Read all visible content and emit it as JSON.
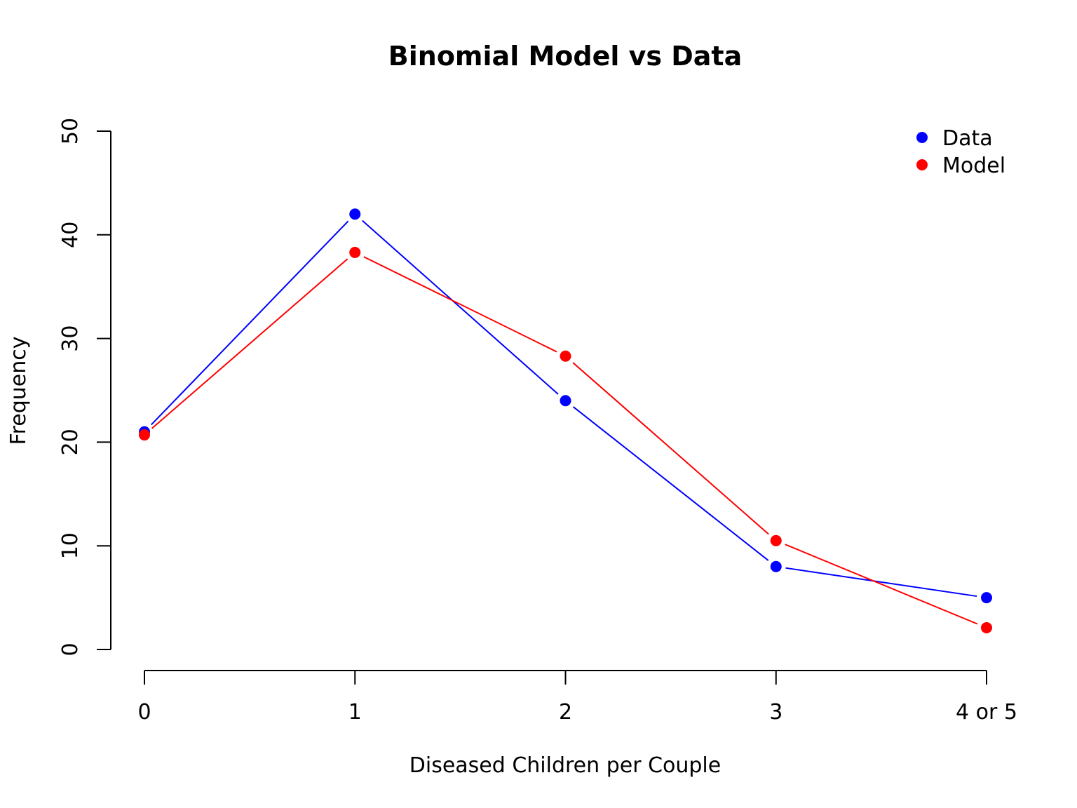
{
  "chart_data": {
    "type": "line",
    "title": "Binomial Model vs Data",
    "xlabel": "Diseased Children per Couple",
    "ylabel": "Frequency",
    "categories": [
      "0",
      "1",
      "2",
      "3",
      "4 or 5"
    ],
    "ylim": [
      0,
      50
    ],
    "yticks": [
      0,
      10,
      20,
      30,
      40,
      50
    ],
    "grid": false,
    "legend_position": "top-right",
    "series": [
      {
        "name": "Data",
        "color": "#0000ff",
        "values": [
          21,
          42,
          24,
          8,
          5
        ]
      },
      {
        "name": "Model",
        "color": "#ff0000",
        "values": [
          20.7,
          38.3,
          28.3,
          10.5,
          2.1
        ]
      }
    ]
  }
}
